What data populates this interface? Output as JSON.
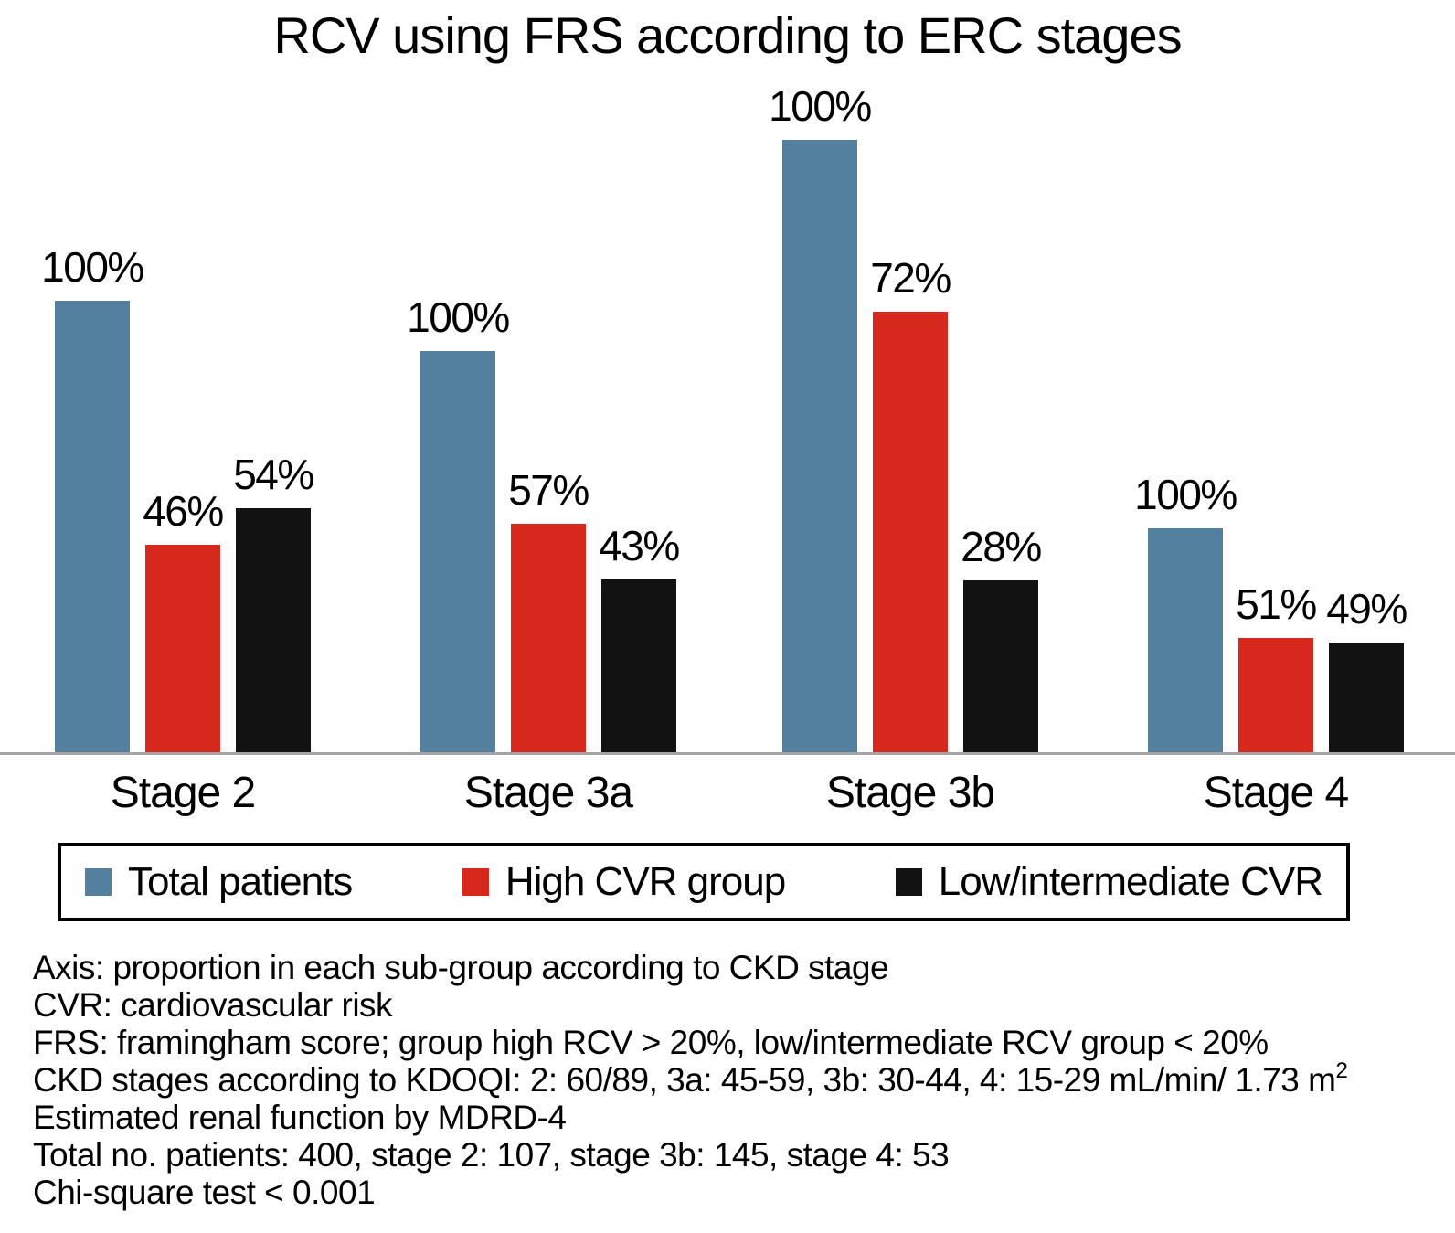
{
  "title": "RCV using FRS according to ERC stages",
  "chart_data": {
    "type": "bar",
    "title": "RCV using FRS according to ERC stages",
    "categories": [
      "Stage 2",
      "Stage 3a",
      "Stage 3b",
      "Stage 4"
    ],
    "series": [
      {
        "name": "Total patients",
        "color": "#54809f",
        "values_pct": [
          100,
          100,
          100,
          100
        ],
        "height_frac": [
          0.737,
          0.655,
          1.0,
          0.366
        ]
      },
      {
        "name": "High CVR group",
        "color": "#d7281d",
        "values_pct": [
          46,
          57,
          72,
          51
        ],
        "height_frac": [
          0.339,
          0.373,
          0.72,
          0.187
        ]
      },
      {
        "name": "Low/intermediate CVR",
        "color": "#121212",
        "values_pct": [
          54,
          43,
          28,
          49
        ],
        "height_frac": [
          0.399,
          0.282,
          0.28,
          0.179
        ]
      }
    ],
    "value_label_suffix": "%",
    "xlabel": "",
    "ylabel": "",
    "grid": false,
    "legend_position": "bottom-boxed",
    "scale_note": "Blue bar heights are drawn proportional to the number of patients in each CKD stage; data labels give percent within each stage."
  },
  "legend": {
    "items": [
      "Total patients",
      "High CVR group",
      "Low/intermediate CVR"
    ]
  },
  "footnotes": {
    "lines": [
      {
        "text": "Axis: proportion in each sub-group according to CKD stage",
        "sup": ""
      },
      {
        "text": "CVR: cardiovascular risk",
        "sup": ""
      },
      {
        "text": "FRS: framingham score; group high RCV > 20%, low/intermediate RCV group < 20%",
        "sup": ""
      },
      {
        "text": "CKD stages according to KDOQI: 2: 60/89, 3a: 45-59, 3b: 30-44, 4: 15-29 mL/min/ 1.73 m",
        "sup": "2"
      },
      {
        "text": "Estimated renal function by MDRD-4",
        "sup": ""
      },
      {
        "text": "Total no. patients: 400, stage 2: 107, stage 3b: 145, stage 4: 53",
        "sup": ""
      },
      {
        "text": "Chi-square test < 0.001",
        "sup": ""
      }
    ]
  },
  "colors": {
    "background": "#ffffff",
    "text": "#000000",
    "axis_line": "#a3a3a3",
    "legend_border": "#000000"
  }
}
